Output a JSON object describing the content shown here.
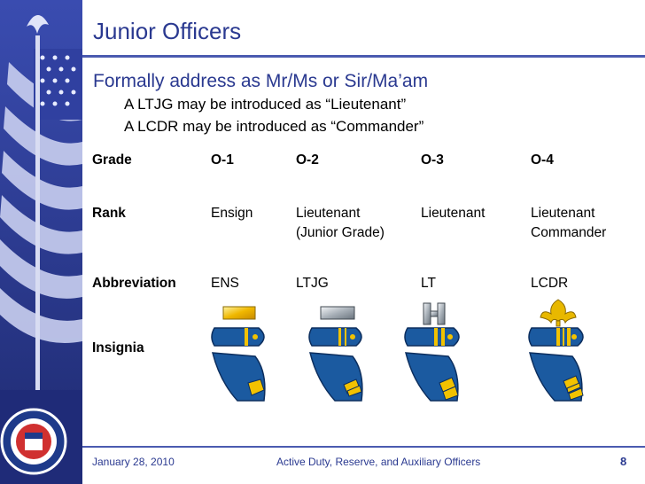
{
  "title": "Junior Officers",
  "bullet": "Formally address as Mr/Ms or Sir/Ma’am",
  "subs": [
    "A LTJG may be introduced as “Lieutenant”",
    "A LCDR may be introduced as “Commander”"
  ],
  "table": {
    "row_labels": [
      "Grade",
      "Rank",
      "Abbreviation",
      "Insignia"
    ],
    "grades": [
      "O-1",
      "O-2",
      "O-3",
      "O-4"
    ],
    "ranks": [
      [
        "Ensign",
        ""
      ],
      [
        "Lieutenant",
        "(Junior Grade)"
      ],
      [
        "Lieutenant",
        ""
      ],
      [
        "Lieutenant",
        "Commander"
      ]
    ],
    "abbreviations": [
      "ENS",
      "LTJG",
      "LT",
      "LCDR"
    ]
  },
  "footer": {
    "date": "January 28, 2010",
    "center": "Active Duty, Reserve, and Auxiliary Officers",
    "page": "8"
  },
  "colors": {
    "accent": "#2a3990",
    "sidebar": "#2b3a8c",
    "board": "#1b4f8a",
    "gold": "#f2c200"
  }
}
